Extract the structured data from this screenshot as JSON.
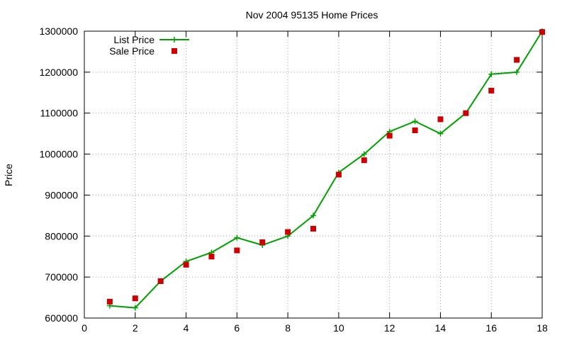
{
  "chart_data": {
    "type": "line",
    "title": "Nov 2004 95135 Home Prices",
    "xlabel": "",
    "ylabel": "Price",
    "xlim": [
      0,
      18
    ],
    "ylim": [
      600000,
      1300000
    ],
    "xticks": [
      0,
      2,
      4,
      6,
      8,
      10,
      12,
      14,
      16,
      18
    ],
    "yticks": [
      600000,
      700000,
      800000,
      900000,
      1000000,
      1100000,
      1200000,
      1300000
    ],
    "grid": true,
    "legend_position": "top-left",
    "series": [
      {
        "name": "List Price",
        "style": "line-with-plus-markers",
        "color": "#00a000",
        "x": [
          1,
          2,
          3,
          4,
          5,
          6,
          7,
          8,
          9,
          10,
          11,
          12,
          13,
          14,
          15,
          16,
          17,
          18
        ],
        "values": [
          630000,
          625000,
          690000,
          738000,
          760000,
          796000,
          778000,
          800000,
          850000,
          955000,
          1000000,
          1055000,
          1080000,
          1050000,
          1100000,
          1195000,
          1200000,
          1300000
        ]
      },
      {
        "name": "Sale Price",
        "style": "square-markers",
        "color": "#cc0000",
        "x": [
          1,
          2,
          3,
          4,
          5,
          6,
          7,
          8,
          9,
          10,
          11,
          12,
          13,
          14,
          15,
          16,
          17,
          18
        ],
        "values": [
          640000,
          648000,
          690000,
          730000,
          750000,
          765000,
          785000,
          810000,
          818000,
          950000,
          985000,
          1045000,
          1058000,
          1085000,
          1100000,
          1155000,
          1230000,
          1298000
        ]
      }
    ]
  }
}
